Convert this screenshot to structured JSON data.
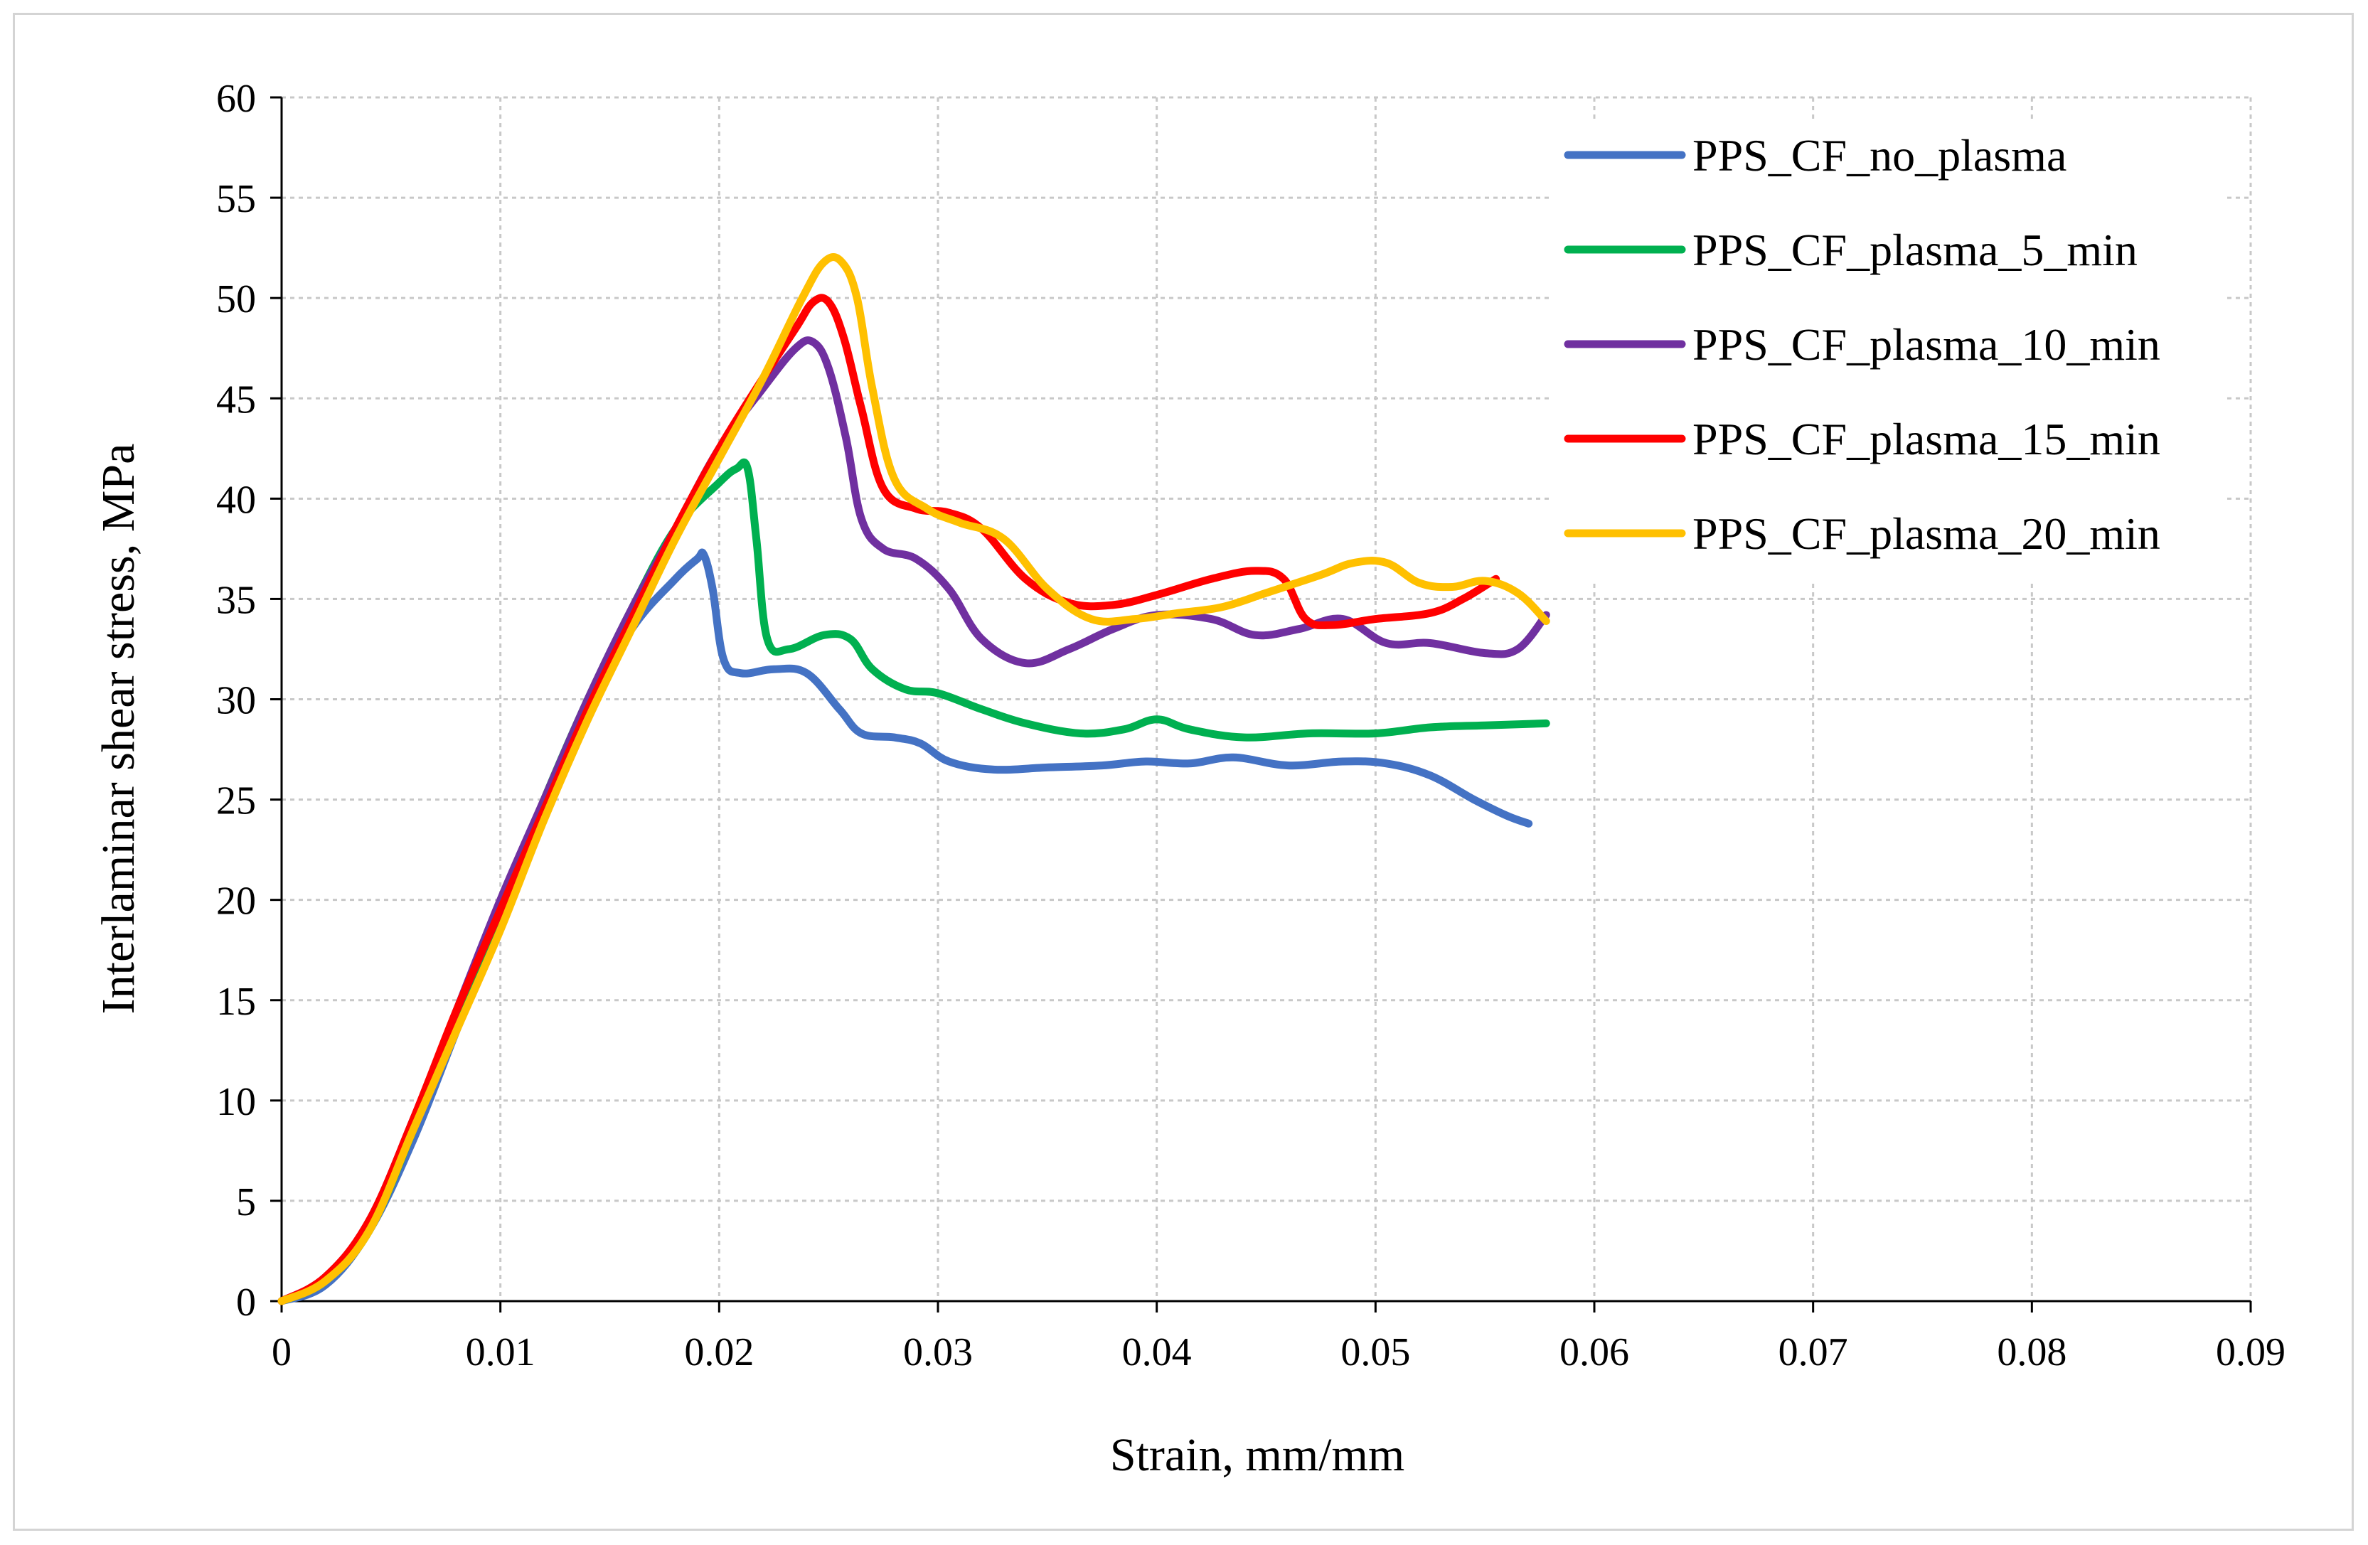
{
  "chart_data": {
    "type": "line",
    "title": "",
    "xlabel": "Strain, mm/mm",
    "ylabel": "Interlaminar shear stress, MPa",
    "xlim": [
      0,
      0.09
    ],
    "ylim": [
      0,
      60
    ],
    "xticks": [
      0,
      0.01,
      0.02,
      0.03,
      0.04,
      0.05,
      0.06,
      0.07,
      0.08,
      0.09
    ],
    "xtick_labels": [
      "0",
      "0.01",
      "0.02",
      "0.03",
      "0.04",
      "0.05",
      "0.06",
      "0.07",
      "0.08",
      "0.09"
    ],
    "yticks": [
      0,
      5,
      10,
      15,
      20,
      25,
      30,
      35,
      40,
      45,
      50,
      55,
      60
    ],
    "ytick_labels": [
      "0",
      "5",
      "10",
      "15",
      "20",
      "25",
      "30",
      "35",
      "40",
      "45",
      "50",
      "55",
      "60"
    ],
    "grid": true,
    "legend_position": "top-right",
    "series": [
      {
        "name": "PPS_CF_no_plasma",
        "color": "#4472C4",
        "x": [
          0,
          0.002,
          0.004,
          0.006,
          0.008,
          0.01,
          0.012,
          0.014,
          0.016,
          0.018,
          0.019,
          0.0193,
          0.0197,
          0.0202,
          0.021,
          0.0225,
          0.024,
          0.0255,
          0.0265,
          0.028,
          0.0292,
          0.0305,
          0.0325,
          0.035,
          0.0375,
          0.0395,
          0.0415,
          0.0435,
          0.046,
          0.0485,
          0.0505,
          0.0525,
          0.0545,
          0.056,
          0.057
        ],
        "y": [
          0,
          0.8,
          3.5,
          8,
          13.5,
          19,
          24.5,
          29.5,
          33.5,
          36.0,
          37.0,
          37.2,
          35.5,
          32.0,
          31.3,
          31.5,
          31.3,
          29.5,
          28.3,
          28.1,
          27.8,
          26.9,
          26.5,
          26.6,
          26.7,
          26.9,
          26.8,
          27.1,
          26.7,
          26.9,
          26.8,
          26.2,
          25.0,
          24.2,
          23.8
        ]
      },
      {
        "name": "PPS_CF_plasma_5_min",
        "color": "#00B050",
        "x": [
          0,
          0.002,
          0.004,
          0.006,
          0.008,
          0.01,
          0.012,
          0.014,
          0.016,
          0.018,
          0.02,
          0.0208,
          0.0213,
          0.0217,
          0.0222,
          0.0232,
          0.0248,
          0.026,
          0.027,
          0.0285,
          0.03,
          0.032,
          0.034,
          0.0365,
          0.0385,
          0.04,
          0.0415,
          0.044,
          0.047,
          0.05,
          0.0525,
          0.055,
          0.0578
        ],
        "y": [
          0,
          1.0,
          3.5,
          8.5,
          14,
          19.5,
          25,
          30,
          34.5,
          38.5,
          40.8,
          41.5,
          41.5,
          38.0,
          33.0,
          32.5,
          33.2,
          33.0,
          31.5,
          30.5,
          30.3,
          29.5,
          28.8,
          28.3,
          28.5,
          29.0,
          28.5,
          28.1,
          28.3,
          28.3,
          28.6,
          28.7,
          28.8
        ]
      },
      {
        "name": "PPS_CF_plasma_10_min",
        "color": "#7030A0",
        "x": [
          0,
          0.002,
          0.004,
          0.006,
          0.008,
          0.01,
          0.012,
          0.014,
          0.016,
          0.018,
          0.02,
          0.022,
          0.0235,
          0.0243,
          0.025,
          0.0258,
          0.0265,
          0.0275,
          0.029,
          0.0305,
          0.032,
          0.034,
          0.036,
          0.038,
          0.04,
          0.0425,
          0.0445,
          0.0465,
          0.0485,
          0.0505,
          0.0525,
          0.055,
          0.0565,
          0.0578
        ],
        "y": [
          0,
          1.2,
          4.0,
          9.0,
          14.5,
          20,
          25,
          30,
          34.5,
          38.5,
          42.5,
          45.5,
          47.5,
          47.8,
          46.5,
          43.0,
          39.0,
          37.5,
          37.0,
          35.5,
          33.0,
          31.8,
          32.5,
          33.5,
          34.2,
          34.0,
          33.2,
          33.5,
          34.0,
          32.8,
          32.8,
          32.3,
          32.5,
          34.2
        ]
      },
      {
        "name": "PPS_CF_plasma_15_min",
        "color": "#FF0000",
        "x": [
          0,
          0.002,
          0.004,
          0.006,
          0.008,
          0.01,
          0.012,
          0.014,
          0.016,
          0.018,
          0.02,
          0.022,
          0.0235,
          0.0243,
          0.025,
          0.0257,
          0.0265,
          0.0275,
          0.029,
          0.0305,
          0.032,
          0.034,
          0.036,
          0.038,
          0.04,
          0.0425,
          0.0445,
          0.0458,
          0.0468,
          0.048,
          0.05,
          0.0525,
          0.054,
          0.0555
        ],
        "y": [
          0,
          1.2,
          4.0,
          9.0,
          14.5,
          19.5,
          24.5,
          29.5,
          34,
          38.5,
          42.5,
          46,
          48.5,
          49.8,
          49.8,
          48.0,
          44.5,
          40.5,
          39.5,
          39.3,
          38.5,
          36.0,
          34.8,
          34.7,
          35.2,
          36.0,
          36.4,
          36.0,
          34.0,
          33.7,
          34.0,
          34.3,
          35.0,
          36.0
        ]
      },
      {
        "name": "PPS_CF_plasma_20_min",
        "color": "#FFC000",
        "x": [
          0,
          0.002,
          0.004,
          0.006,
          0.008,
          0.01,
          0.012,
          0.014,
          0.016,
          0.018,
          0.02,
          0.022,
          0.0238,
          0.0248,
          0.0256,
          0.0263,
          0.027,
          0.028,
          0.0295,
          0.031,
          0.033,
          0.035,
          0.037,
          0.039,
          0.041,
          0.043,
          0.045,
          0.0475,
          0.049,
          0.0505,
          0.052,
          0.0535,
          0.055,
          0.0565,
          0.0578
        ],
        "y": [
          0,
          1.0,
          3.5,
          8.5,
          13.5,
          18.5,
          24,
          29,
          33.5,
          38,
          42,
          46,
          50,
          51.8,
          51.8,
          50.0,
          45.5,
          41.0,
          39.5,
          38.8,
          38.0,
          35.5,
          34.0,
          34.0,
          34.3,
          34.6,
          35.3,
          36.2,
          36.8,
          36.8,
          35.8,
          35.6,
          35.9,
          35.3,
          33.9
        ]
      }
    ]
  }
}
